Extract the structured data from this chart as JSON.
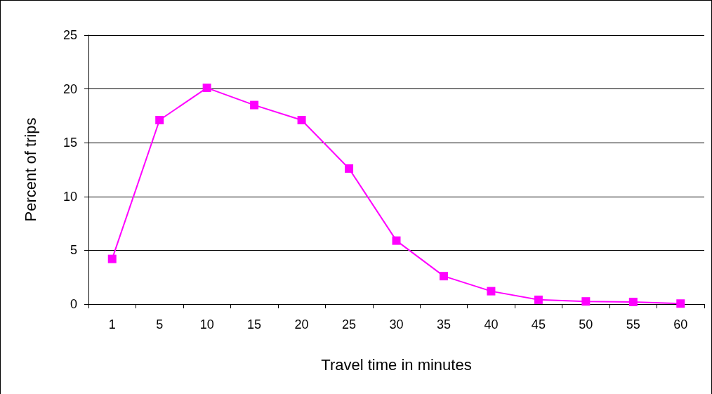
{
  "chart_data": {
    "type": "line",
    "xlabel": "Travel time in minutes",
    "ylabel": "Percent of trips",
    "categories": [
      "1",
      "5",
      "10",
      "15",
      "20",
      "25",
      "30",
      "35",
      "40",
      "45",
      "50",
      "55",
      "60"
    ],
    "series": [
      {
        "color": "#ff00ff",
        "values": [
          4.2,
          17.1,
          20.1,
          18.5,
          17.1,
          12.6,
          5.9,
          2.6,
          1.2,
          0.4,
          0.25,
          0.2,
          0.05
        ]
      }
    ],
    "ylim": [
      0,
      25
    ],
    "yticks": [
      0,
      5,
      10,
      15,
      20,
      25
    ],
    "grid": "y",
    "marker": "square",
    "line_style": "solid"
  }
}
